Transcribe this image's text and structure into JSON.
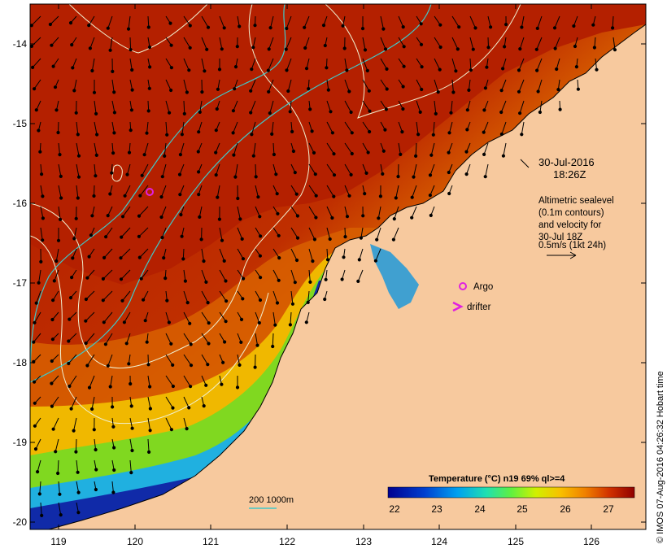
{
  "map": {
    "date": "30-Jul-2016",
    "time": "18:26Z",
    "info_lines": [
      "Altimetric sealevel",
      "(0.1m contours)",
      "and velocity for",
      "30-Jul 18Z",
      "0.5m/s (1kt 24h)"
    ],
    "legend": {
      "argo": "Argo",
      "drifter": "drifter"
    },
    "depth_label": "200  1000m",
    "credit": "© IMOS 07-Aug-2016 04:26:32 Hobart time",
    "colorbar": {
      "title": "Temperature (°C) n19 69% ql>=4",
      "ticks": [
        "22",
        "23",
        "24",
        "25",
        "26",
        "27"
      ]
    },
    "x_axis": {
      "ticks": [
        "119",
        "120",
        "121",
        "122",
        "123",
        "124",
        "125",
        "126"
      ]
    },
    "y_axis": {
      "ticks": [
        "-14",
        "-15",
        "-16",
        "-17",
        "-18",
        "-19",
        "-20"
      ]
    },
    "colors": {
      "land": "#f7c99e",
      "warm_sea": "#b02000",
      "cool_sea": "#0a1a9a",
      "argo": "#e020e0",
      "depth_200": "#40c8c8",
      "sealevel_contour": "#f0f0d0"
    }
  }
}
